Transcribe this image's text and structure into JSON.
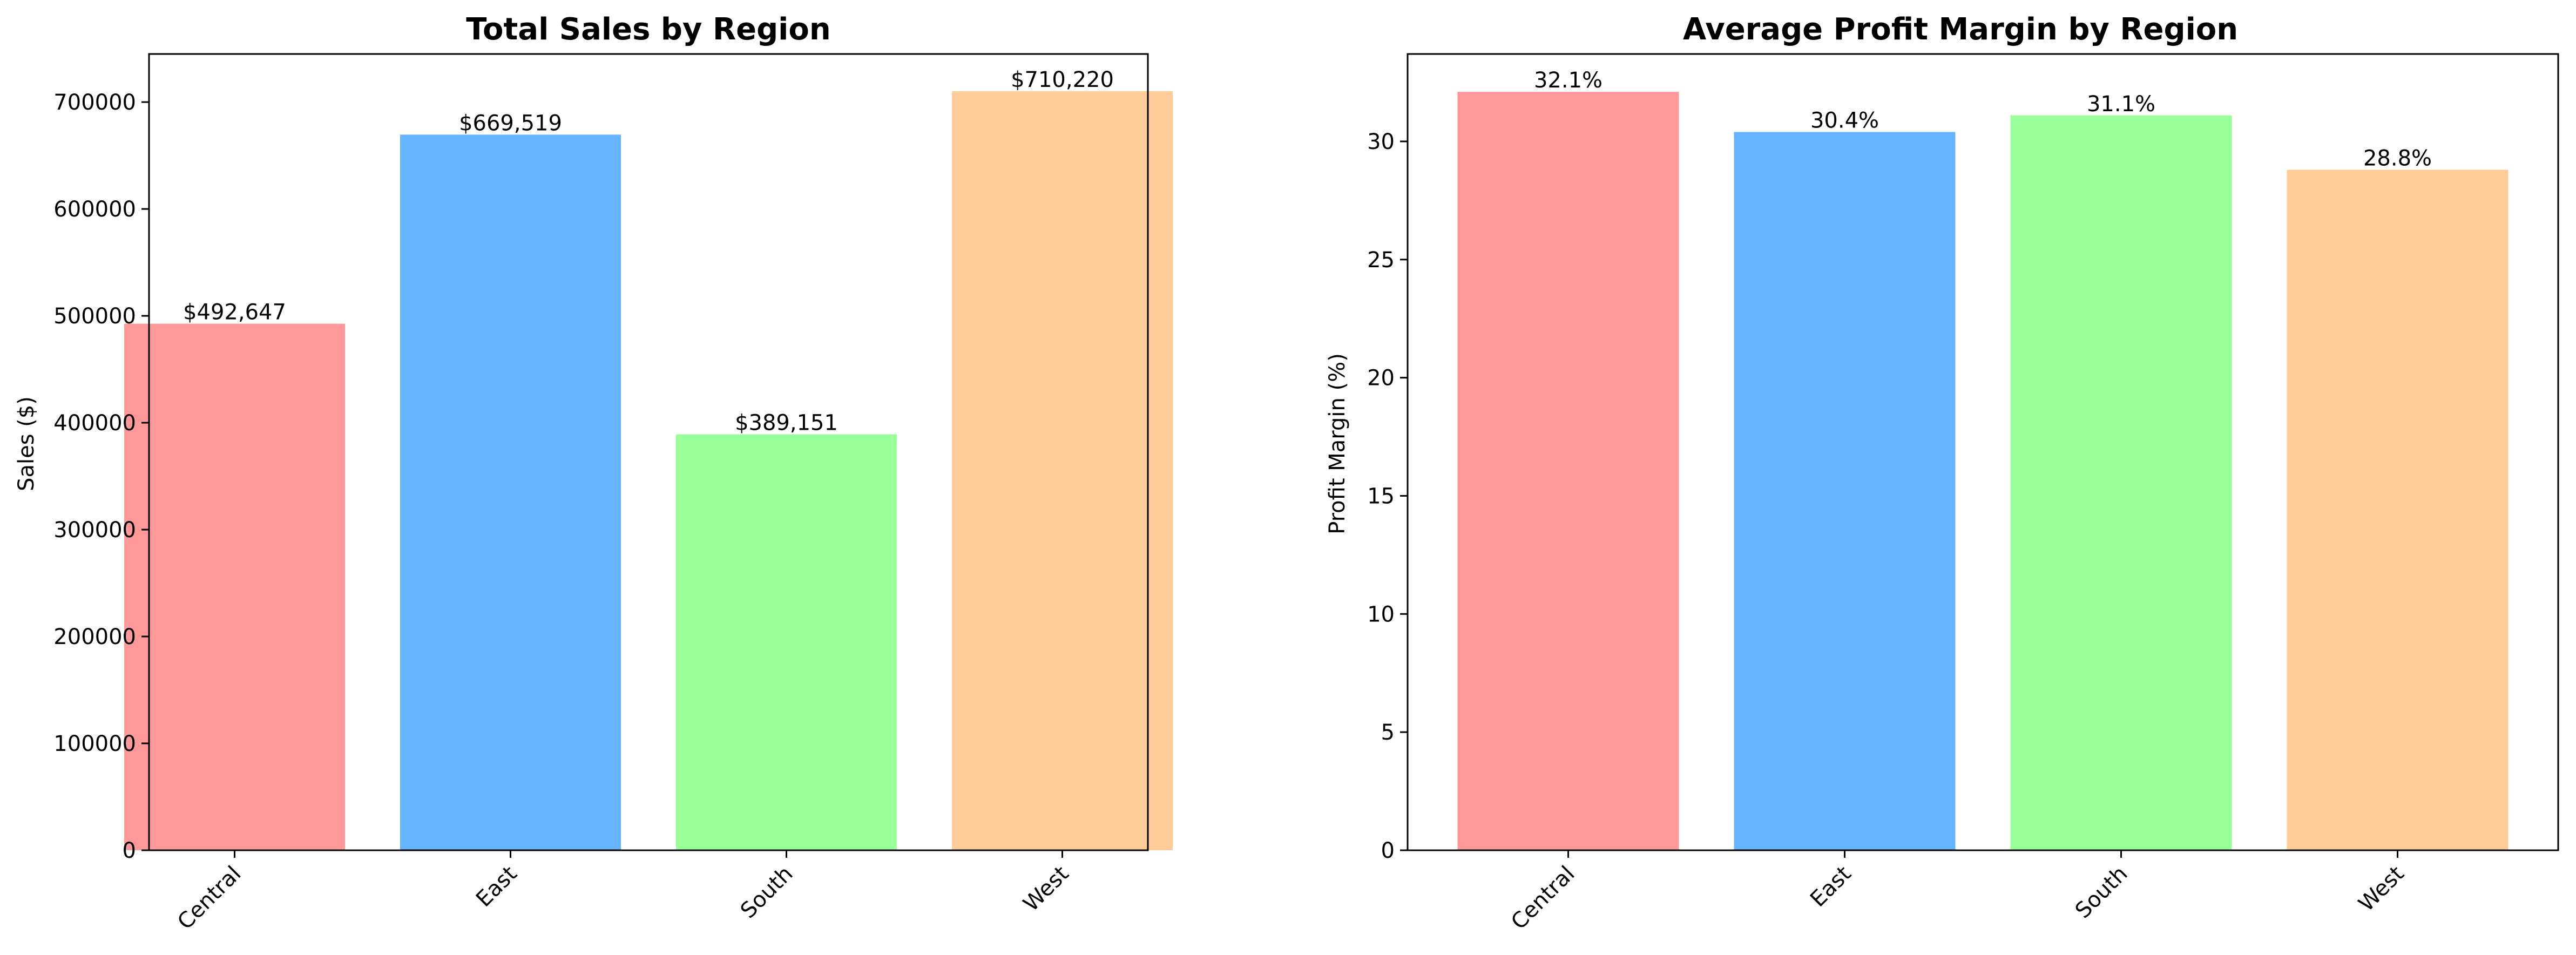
{
  "chart_data": [
    {
      "type": "bar",
      "title": "Total Sales by Region",
      "xlabel": "",
      "ylabel": "Sales ($)",
      "categories": [
        "Central",
        "East",
        "South",
        "West"
      ],
      "values": [
        492647,
        669519,
        389151,
        710220
      ],
      "value_labels": [
        "$492,647",
        "$669,519",
        "$389,151",
        "$710,220"
      ],
      "colors": [
        "#ff9999",
        "#66b3ff",
        "#99ff99",
        "#ffcc99"
      ],
      "ylim": [
        0,
        745000
      ],
      "yticks": [
        0,
        100000,
        200000,
        300000,
        400000,
        500000,
        600000,
        700000
      ],
      "ytick_labels": [
        "0",
        "100000",
        "200000",
        "300000",
        "400000",
        "500000",
        "600000",
        "700000"
      ],
      "grid": false,
      "legend": "none"
    },
    {
      "type": "bar",
      "title": "Average Profit Margin by Region",
      "xlabel": "",
      "ylabel": "Profit Margin (%)",
      "categories": [
        "Central",
        "East",
        "South",
        "West"
      ],
      "values": [
        32.1,
        30.4,
        31.1,
        28.8
      ],
      "value_labels": [
        "32.1%",
        "30.4%",
        "31.1%",
        "28.8%"
      ],
      "colors": [
        "#ff9999",
        "#66b3ff",
        "#99ff99",
        "#ffcc99"
      ],
      "ylim": [
        0,
        33.7
      ],
      "yticks": [
        0,
        5,
        10,
        15,
        20,
        25,
        30
      ],
      "ytick_labels": [
        "0",
        "5",
        "10",
        "15",
        "20",
        "25",
        "30"
      ],
      "grid": false,
      "legend": "none"
    }
  ]
}
